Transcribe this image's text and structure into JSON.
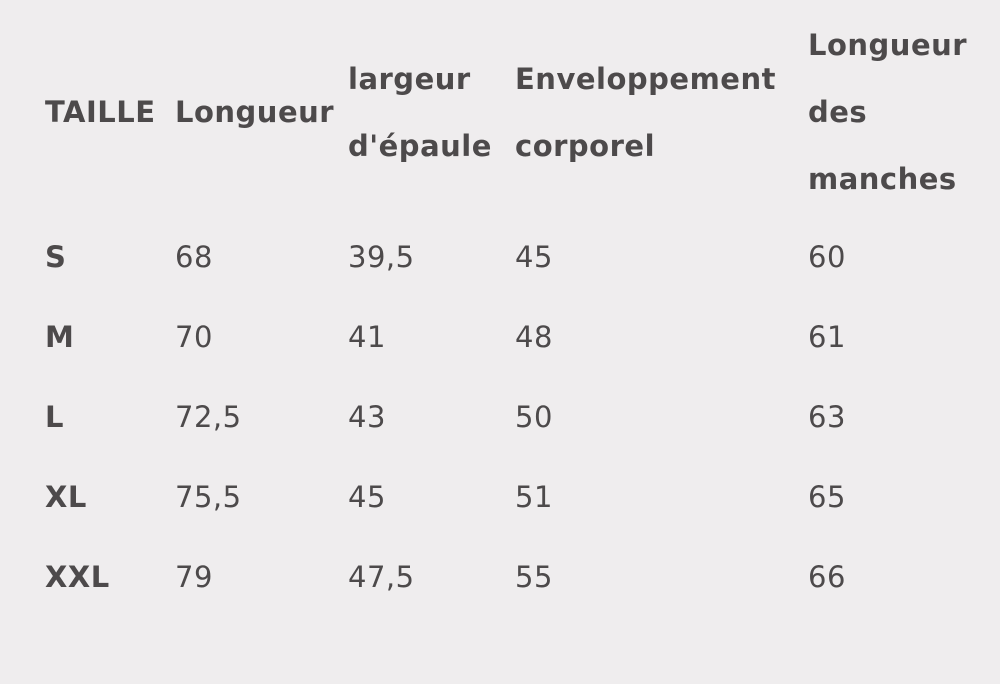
{
  "table": {
    "header": [
      "TAILLE",
      "Longueur",
      "largeur d'épaule",
      "Enveloppement corporel",
      "Longueur des manches"
    ],
    "rows": [
      [
        "S",
        "68",
        "39,5",
        "45",
        "60"
      ],
      [
        "M",
        "70",
        "41",
        "48",
        "61"
      ],
      [
        "L",
        "72,5",
        "43",
        "50",
        "63"
      ],
      [
        "XL",
        "75,5",
        "45",
        "51",
        "65"
      ],
      [
        "XXL",
        "79",
        "47,5",
        "55",
        "66"
      ]
    ]
  }
}
